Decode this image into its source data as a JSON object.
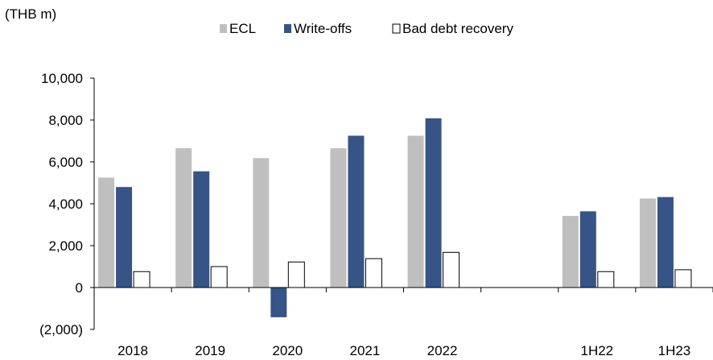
{
  "unit_label": "(THB m)",
  "colors": {
    "ecl": "#BFBFBF",
    "write_offs": "#365486",
    "bad_debt_recovery": "#FFFFFF",
    "axis": "#000000"
  },
  "chart_data": {
    "type": "bar",
    "title": "",
    "xlabel": "",
    "ylabel": "(THB m)",
    "ylim": [
      -2000,
      10000
    ],
    "yticks": [
      10000,
      8000,
      6000,
      4000,
      2000,
      0,
      -2000
    ],
    "ytick_labels": [
      "10,000",
      "8,000",
      "6,000",
      "4,000",
      "2,000",
      "0",
      "(2,000)"
    ],
    "categories": [
      "2018",
      "2019",
      "2020",
      "2021",
      "2022",
      "",
      "1H22",
      "1H23"
    ],
    "legend_position": "top-center",
    "grid": false,
    "series": [
      {
        "name": "ECL",
        "key": "ecl",
        "values": [
          5250,
          6650,
          6180,
          6650,
          7250,
          null,
          3420,
          4250
        ]
      },
      {
        "name": "Write-offs",
        "key": "write_offs",
        "values": [
          4800,
          5550,
          -1420,
          7250,
          8080,
          null,
          3640,
          4320
        ]
      },
      {
        "name": "Bad debt recovery",
        "key": "bad_debt_recovery",
        "values": [
          760,
          1000,
          1220,
          1380,
          1680,
          null,
          760,
          850
        ]
      }
    ]
  }
}
